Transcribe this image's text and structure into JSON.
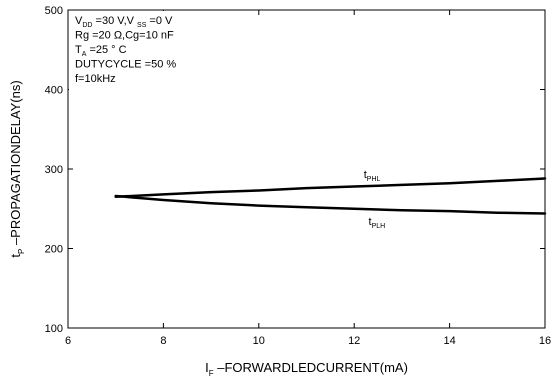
{
  "chart_data": {
    "type": "line",
    "title": "",
    "xlabel": {
      "main": "I",
      "sub": "F",
      "rest": " –FORWARDLEDCURRENT(mA)"
    },
    "ylabel": {
      "main": "t",
      "sub": "P",
      "rest": " –PROPAGATIONDELAY(ns)"
    },
    "xlim": [
      6,
      16
    ],
    "ylim": [
      100,
      500
    ],
    "xticks": [
      6,
      8,
      10,
      12,
      14,
      16
    ],
    "yticks": [
      100,
      200,
      300,
      400,
      500
    ],
    "grid": false,
    "series": [
      {
        "name": "tPHL",
        "label_main": "t",
        "label_sub": "PHL",
        "color": "#000000",
        "x": [
          7,
          8,
          9,
          10,
          11,
          12,
          13,
          14,
          15,
          16
        ],
        "y": [
          265,
          268,
          271,
          273,
          276,
          278,
          280,
          282,
          285,
          288
        ]
      },
      {
        "name": "tPLH",
        "label_main": "t",
        "label_sub": "PLH",
        "color": "#000000",
        "x": [
          7,
          8,
          9,
          10,
          11,
          12,
          13,
          14,
          15,
          16
        ],
        "y": [
          266,
          261,
          257,
          254,
          252,
          250,
          248,
          247,
          245,
          244
        ]
      }
    ],
    "annotations": [
      {
        "parts": [
          {
            "t": "V"
          },
          {
            "t": "DD",
            "sub": true
          },
          {
            "t": " =30 V,V "
          },
          {
            "t": "SS",
            "sub": true
          },
          {
            "t": " =0 V"
          }
        ]
      },
      {
        "parts": [
          {
            "t": "Rg  =20 Ω,Cg=10 nF"
          }
        ]
      },
      {
        "parts": [
          {
            "t": "T"
          },
          {
            "t": "A",
            "sub": true
          },
          {
            "t": " =25 ° C"
          }
        ]
      },
      {
        "parts": [
          {
            "t": "DUTYCYCLE  =50 %"
          }
        ]
      },
      {
        "parts": [
          {
            "t": "f=10kHz"
          }
        ]
      }
    ]
  }
}
